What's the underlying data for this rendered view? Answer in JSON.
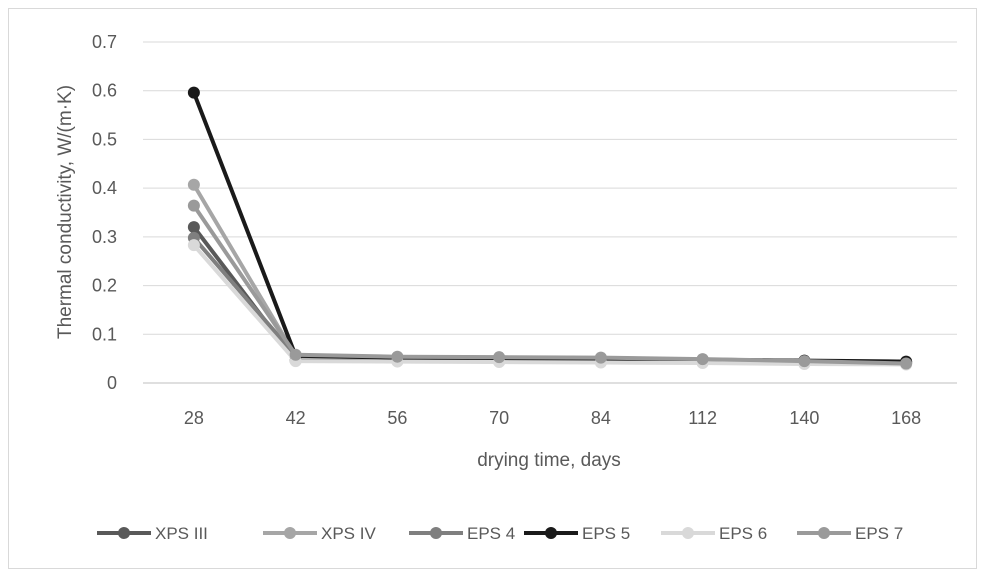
{
  "chart_data": {
    "type": "line",
    "title": "",
    "xlabel": "drying time, days",
    "ylabel": "Thermal conductivity, W/(m·K)",
    "categories": [
      "28",
      "42",
      "56",
      "70",
      "84",
      "112",
      "140",
      "168"
    ],
    "ylim": [
      0,
      0.7
    ],
    "yticks": [
      "0",
      "0.1",
      "0.2",
      "0.3",
      "0.4",
      "0.5",
      "0.6",
      "0.7"
    ],
    "grid": true,
    "legend_position": "bottom",
    "series": [
      {
        "name": "XPS III",
        "color": "#595959",
        "values": [
          0.32,
          0.046,
          0.045,
          0.044,
          0.043,
          0.042,
          0.043,
          0.043
        ]
      },
      {
        "name": "XPS IV",
        "color": "#a6a6a6",
        "values": [
          0.407,
          0.055,
          0.052,
          0.05,
          0.048,
          0.046,
          0.042,
          0.04
        ]
      },
      {
        "name": "EPS 4",
        "color": "#7f7f7f",
        "values": [
          0.298,
          0.056,
          0.053,
          0.051,
          0.05,
          0.048,
          0.044,
          0.04
        ]
      },
      {
        "name": "EPS 5",
        "color": "#1a1a1a",
        "values": [
          0.596,
          0.056,
          0.052,
          0.05,
          0.049,
          0.048,
          0.046,
          0.044
        ]
      },
      {
        "name": "EPS 6",
        "color": "#d9d9d9",
        "values": [
          0.283,
          0.045,
          0.044,
          0.043,
          0.042,
          0.041,
          0.039,
          0.038
        ]
      },
      {
        "name": "EPS 7",
        "color": "#9a9a9a",
        "values": [
          0.364,
          0.058,
          0.054,
          0.053,
          0.052,
          0.049,
          0.045,
          0.04
        ]
      }
    ]
  }
}
